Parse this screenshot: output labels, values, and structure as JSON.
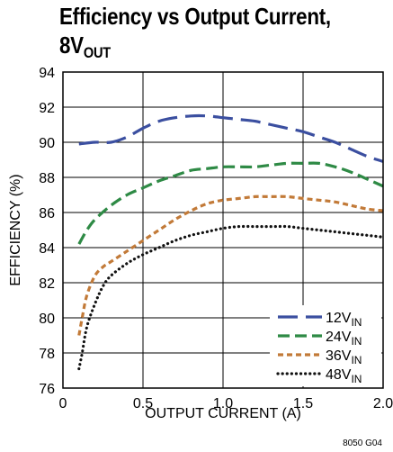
{
  "title": {
    "line1": "Efficiency vs Output Current,",
    "line2_main": "8V",
    "line2_sub": "OUT"
  },
  "chart_data": {
    "type": "line",
    "title": "Efficiency vs Output Current, 8VOUT",
    "xlabel": "OUTPUT CURRENT (A)",
    "ylabel": "EFFICIENCY (%)",
    "xlim": [
      0,
      2.0
    ],
    "ylim": [
      76,
      94
    ],
    "x_ticks": [
      "0",
      "0.5",
      "1.0",
      "1.5",
      "2.0"
    ],
    "y_ticks": [
      "76",
      "78",
      "80",
      "82",
      "84",
      "86",
      "88",
      "90",
      "92",
      "94"
    ],
    "grid": true,
    "legend_position": "bottom-right",
    "series": [
      {
        "name": "12VIN",
        "name_main": "12V",
        "name_sub": "IN",
        "color": "#3b4fa0",
        "dash": "long-dash",
        "points": [
          [
            0.1,
            89.9
          ],
          [
            0.2,
            90.0
          ],
          [
            0.3,
            90.0
          ],
          [
            0.4,
            90.3
          ],
          [
            0.5,
            90.8
          ],
          [
            0.6,
            91.2
          ],
          [
            0.7,
            91.4
          ],
          [
            0.8,
            91.5
          ],
          [
            0.9,
            91.5
          ],
          [
            1.0,
            91.4
          ],
          [
            1.1,
            91.3
          ],
          [
            1.2,
            91.2
          ],
          [
            1.3,
            91.0
          ],
          [
            1.4,
            90.8
          ],
          [
            1.5,
            90.6
          ],
          [
            1.6,
            90.3
          ],
          [
            1.7,
            90.0
          ],
          [
            1.8,
            89.6
          ],
          [
            1.9,
            89.2
          ],
          [
            2.0,
            88.9
          ]
        ]
      },
      {
        "name": "24VIN",
        "name_main": "24V",
        "name_sub": "IN",
        "color": "#2e8a45",
        "dash": "medium-dash",
        "points": [
          [
            0.1,
            84.2
          ],
          [
            0.15,
            85.0
          ],
          [
            0.2,
            85.6
          ],
          [
            0.3,
            86.4
          ],
          [
            0.4,
            87.0
          ],
          [
            0.5,
            87.4
          ],
          [
            0.6,
            87.8
          ],
          [
            0.7,
            88.1
          ],
          [
            0.8,
            88.4
          ],
          [
            0.9,
            88.5
          ],
          [
            1.0,
            88.6
          ],
          [
            1.1,
            88.6
          ],
          [
            1.2,
            88.6
          ],
          [
            1.3,
            88.7
          ],
          [
            1.4,
            88.8
          ],
          [
            1.5,
            88.8
          ],
          [
            1.6,
            88.8
          ],
          [
            1.7,
            88.6
          ],
          [
            1.8,
            88.3
          ],
          [
            1.9,
            87.9
          ],
          [
            2.0,
            87.5
          ]
        ]
      },
      {
        "name": "36VIN",
        "name_main": "36V",
        "name_sub": "IN",
        "color": "#c27a38",
        "dash": "short-dash",
        "points": [
          [
            0.1,
            79.0
          ],
          [
            0.12,
            80.0
          ],
          [
            0.15,
            81.3
          ],
          [
            0.2,
            82.4
          ],
          [
            0.25,
            82.9
          ],
          [
            0.3,
            83.2
          ],
          [
            0.4,
            83.8
          ],
          [
            0.5,
            84.4
          ],
          [
            0.6,
            85.0
          ],
          [
            0.7,
            85.6
          ],
          [
            0.8,
            86.1
          ],
          [
            0.9,
            86.5
          ],
          [
            1.0,
            86.7
          ],
          [
            1.1,
            86.8
          ],
          [
            1.2,
            86.9
          ],
          [
            1.3,
            86.9
          ],
          [
            1.4,
            86.9
          ],
          [
            1.5,
            86.8
          ],
          [
            1.6,
            86.7
          ],
          [
            1.7,
            86.6
          ],
          [
            1.8,
            86.4
          ],
          [
            1.9,
            86.2
          ],
          [
            2.0,
            86.1
          ]
        ]
      },
      {
        "name": "48VIN",
        "name_main": "48V",
        "name_sub": "IN",
        "color": "#111111",
        "dash": "dotted",
        "points": [
          [
            0.1,
            77.1
          ],
          [
            0.12,
            78.0
          ],
          [
            0.15,
            79.5
          ],
          [
            0.2,
            80.8
          ],
          [
            0.25,
            81.8
          ],
          [
            0.3,
            82.4
          ],
          [
            0.4,
            83.1
          ],
          [
            0.5,
            83.6
          ],
          [
            0.6,
            84.0
          ],
          [
            0.7,
            84.4
          ],
          [
            0.8,
            84.7
          ],
          [
            0.9,
            84.9
          ],
          [
            1.0,
            85.1
          ],
          [
            1.1,
            85.2
          ],
          [
            1.2,
            85.2
          ],
          [
            1.3,
            85.2
          ],
          [
            1.4,
            85.2
          ],
          [
            1.5,
            85.1
          ],
          [
            1.6,
            85.0
          ],
          [
            1.7,
            84.9
          ],
          [
            1.8,
            84.8
          ],
          [
            1.9,
            84.7
          ],
          [
            2.0,
            84.6
          ]
        ]
      }
    ]
  },
  "figure_code": "8050 G04"
}
